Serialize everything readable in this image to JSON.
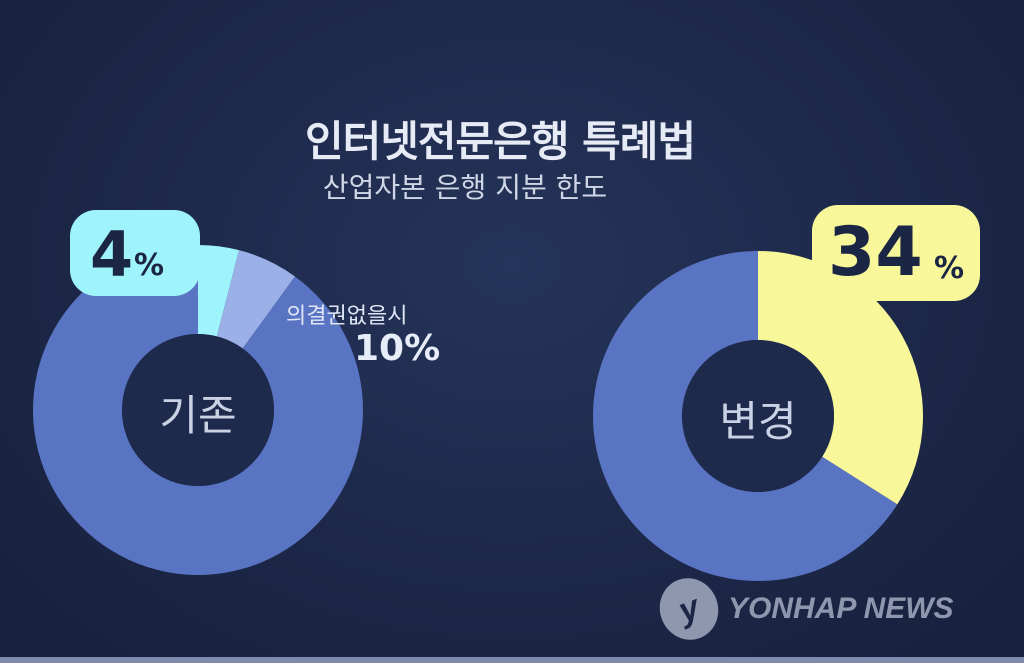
{
  "chart_data": [
    {
      "type": "donut",
      "title": "인터넷전문은행 특례법",
      "subtitle": "산업자본 은행 지분 한도",
      "center_label": "기존",
      "slices": [
        {
          "label": "4%",
          "value": 4,
          "color": "#9ff3fb"
        },
        {
          "label": "의결권없을시 10%",
          "value": 6,
          "color": "#9cb0e8"
        },
        {
          "label": "",
          "value": 90,
          "color": "#5a74c4"
        }
      ],
      "callout": {
        "value": "4",
        "unit": "%"
      },
      "note": {
        "text": "의결권없을시",
        "value": "10%"
      }
    },
    {
      "type": "donut",
      "center_label": "변경",
      "slices": [
        {
          "label": "34%",
          "value": 34,
          "color": "#f8f79a"
        },
        {
          "label": "",
          "value": 66,
          "color": "#5a74c4"
        }
      ],
      "callout": {
        "value": "34",
        "unit": "%"
      }
    }
  ],
  "logo": {
    "text": "YONHAP NEWS",
    "mark": "y"
  }
}
